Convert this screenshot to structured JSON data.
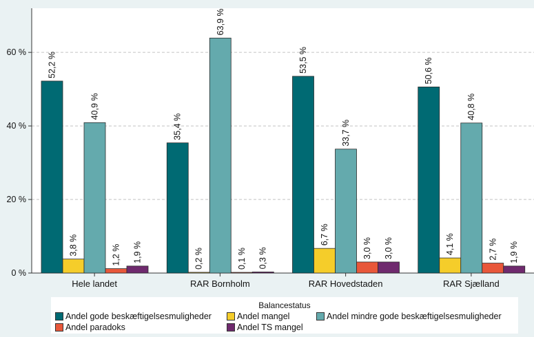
{
  "chart_data": {
    "type": "bar",
    "categories": [
      "Hele landet",
      "RAR Bornholm",
      "RAR Hovedstaden",
      "RAR Sjælland"
    ],
    "series": [
      {
        "name": "Andel gode beskæftigelsesmuligheder",
        "color": "#006a73",
        "values": [
          52.2,
          35.4,
          53.5,
          50.6
        ],
        "labels": [
          "52,2 %",
          "35,4 %",
          "53,5 %",
          "50,6 %"
        ]
      },
      {
        "name": "Andel mangel",
        "color": "#f5cd2a",
        "values": [
          3.8,
          0.2,
          6.7,
          4.1
        ],
        "labels": [
          "3,8 %",
          "0,2 %",
          "6,7 %",
          "4,1 %"
        ]
      },
      {
        "name": "Andel mindre gode beskæftigelsesmuligheder",
        "color": "#64aaad",
        "values": [
          40.9,
          63.9,
          33.7,
          40.8
        ],
        "labels": [
          "40,9 %",
          "63,9 %",
          "33,7 %",
          "40,8 %"
        ]
      },
      {
        "name": "Andel paradoks",
        "color": "#e8573a",
        "values": [
          1.2,
          0.1,
          3.0,
          2.7
        ],
        "labels": [
          "1,2 %",
          "0,1 %",
          "3,0 %",
          "2,7 %"
        ]
      },
      {
        "name": "Andel TS mangel",
        "color": "#6f2a6e",
        "values": [
          1.9,
          0.3,
          3.0,
          1.9
        ],
        "labels": [
          "1,9 %",
          "0,3 %",
          "3,0 %",
          "1,9 %"
        ]
      }
    ],
    "ylim": [
      0,
      72
    ],
    "yticks": [
      0,
      20,
      40,
      60
    ],
    "ytick_labels": [
      "0 %",
      "20 %",
      "40 %",
      "60 %"
    ],
    "grid": true,
    "legend_title": "Balancestatus",
    "legend_position": "bottom",
    "background": "#eaf2f3"
  }
}
